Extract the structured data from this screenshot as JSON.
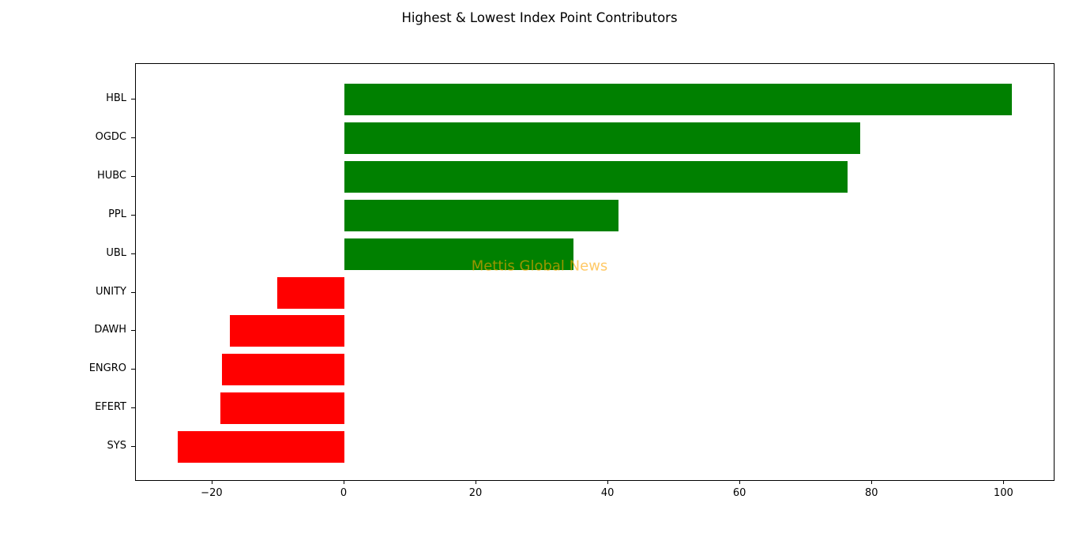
{
  "title": "Highest & Lowest Index Point Contributors",
  "watermark": "Mettis Global News",
  "chart_data": {
    "type": "bar",
    "orientation": "horizontal",
    "title": "Highest & Lowest Index Point Contributors",
    "categories": [
      "HBL",
      "OGDC",
      "HUBC",
      "PPL",
      "UBL",
      "UNITY",
      "DAWH",
      "ENGRO",
      "EFERT",
      "SYS"
    ],
    "values": [
      101.2,
      78.2,
      76.3,
      41.6,
      34.7,
      -10.2,
      -17.4,
      -18.6,
      -18.8,
      -25.3
    ],
    "positive_color": "#008000",
    "negative_color": "#ff0000",
    "xlabel": "",
    "ylabel": "",
    "xlim": [
      -31.6,
      107.5
    ],
    "x_ticks": [
      -20,
      0,
      20,
      40,
      60,
      80,
      100
    ],
    "grid": false,
    "legend_position": "none",
    "annotations": [
      "Mettis Global News"
    ]
  }
}
